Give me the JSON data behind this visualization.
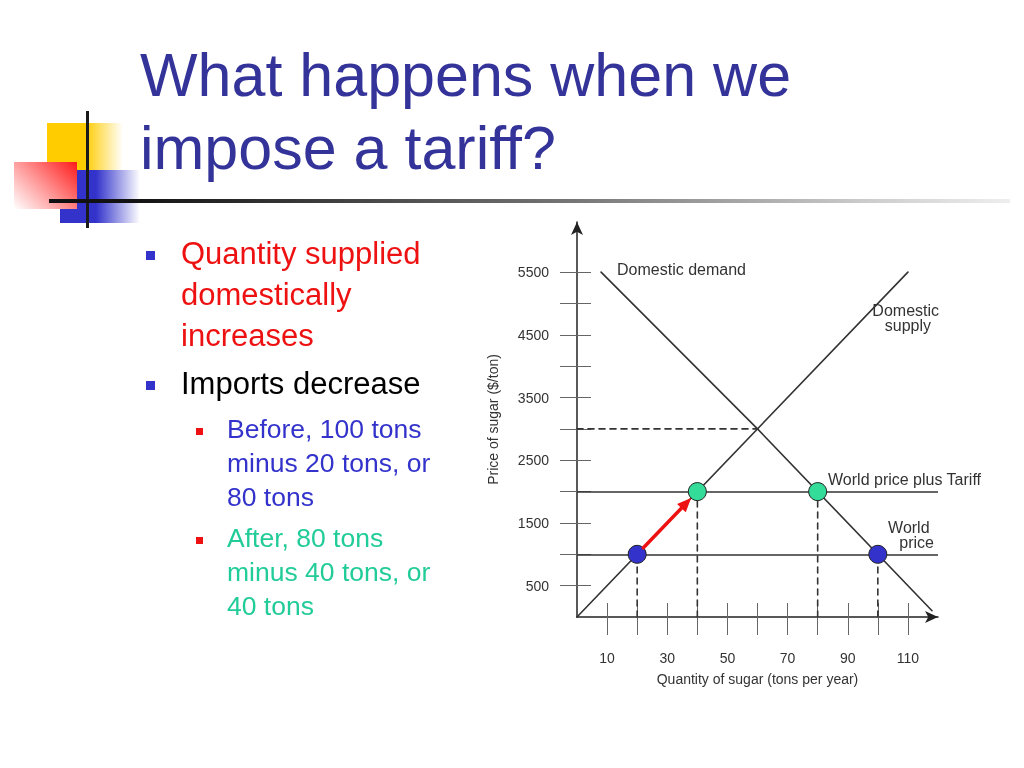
{
  "chart_data": {
    "type": "line",
    "title": "What happens when we impose a tariff?",
    "xlabel": "Quantity of sugar (tons per year)",
    "ylabel": "Price of sugar ($/ton)",
    "annotations": [
      "Quantity supplied domestically increases",
      "Imports decrease",
      "Before, 100 tons minus 20 tons, or 80 tons",
      "After, 80 tons minus 40 tons, or 40 tons"
    ],
    "xlim": [
      0,
      120
    ],
    "ylim": [
      0,
      6300
    ],
    "xticks": [
      10,
      {
        "value": 20,
        "label": null
      },
      30,
      {
        "value": 40,
        "label": null
      },
      50,
      {
        "value": 60,
        "label": null
      },
      70,
      {
        "value": 80,
        "label": null
      },
      90,
      {
        "value": 100,
        "label": null
      },
      110
    ],
    "yticks": [
      500,
      {
        "value": 1000,
        "label": null
      },
      1500,
      {
        "value": 2000,
        "label": null
      },
      2500,
      {
        "value": 3000,
        "label": null
      },
      3500,
      {
        "value": 4000,
        "label": null
      },
      4500,
      {
        "value": 5000,
        "label": null
      },
      5500
    ],
    "series": [
      {
        "name": "Domestic demand",
        "color": "#333333",
        "x": [
          8,
          60,
          118
        ],
        "values": [
          5500,
          3000,
          100
        ],
        "marker": "none"
      },
      {
        "name": "Domestic supply",
        "color": "#333333",
        "x": [
          0,
          110
        ],
        "values": [
          0,
          5500
        ],
        "marker": "none"
      },
      {
        "color": "#333333",
        "x": [
          0,
          60
        ],
        "values": [
          3000,
          3000
        ],
        "marker": "none",
        "line_style": "dashed"
      },
      {
        "color": "#333333",
        "x": [
          20,
          20
        ],
        "values": [
          0,
          1000
        ],
        "marker": "none",
        "line_style": "dashed"
      },
      {
        "color": "#333333",
        "x": [
          40,
          40
        ],
        "values": [
          0,
          2000
        ],
        "marker": "none",
        "line_style": "dashed"
      },
      {
        "color": "#333333",
        "x": [
          80,
          80
        ],
        "values": [
          0,
          2000
        ],
        "marker": "none",
        "line_style": "dashed"
      },
      {
        "color": "#333333",
        "x": [
          100,
          100
        ],
        "values": [
          0,
          1000
        ],
        "marker": "none",
        "line_style": "dashed"
      },
      {
        "type": "scatter",
        "x": [
          20,
          40,
          80,
          100
        ],
        "values": [
          1000,
          2000,
          2000,
          1000
        ],
        "colors": [
          "#3333cc",
          "#33dd99",
          "#33dd99",
          "#3333cc"
        ],
        "marker": "circle"
      }
    ],
    "ref_lines": [
      {
        "axis": "y",
        "value": 1000,
        "label": "World price",
        "color": "#333333"
      },
      {
        "axis": "y",
        "value": 2000,
        "label": "World price plus Tariff",
        "color": "#333333"
      }
    ]
  }
}
